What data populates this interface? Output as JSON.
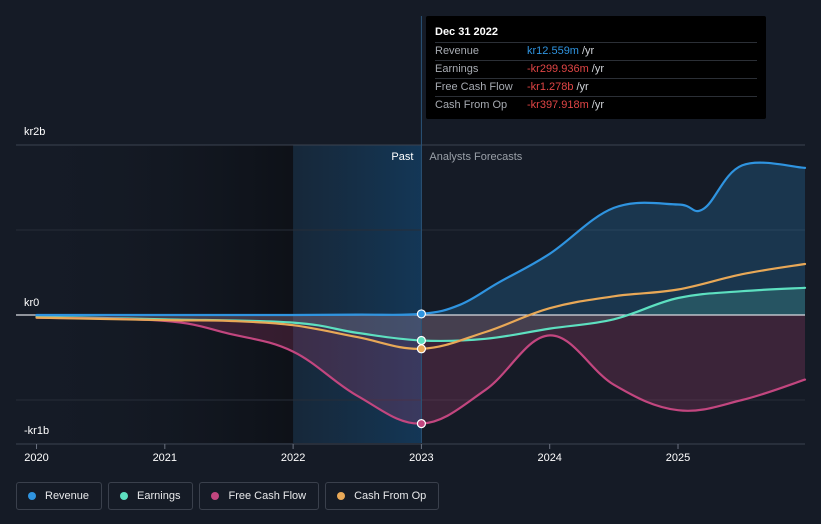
{
  "chart_data": {
    "type": "line",
    "ylabels": [
      {
        "text": "kr2b",
        "value": 2000
      },
      {
        "text": "kr0",
        "value": 0
      },
      {
        "text": "-kr1b",
        "value": -1000
      }
    ],
    "ylim": [
      -1500,
      2000
    ],
    "xlim": [
      2019.84,
      2025.99
    ],
    "x_ticks": [
      {
        "text": "2020",
        "value": 2020
      },
      {
        "text": "2021",
        "value": 2021
      },
      {
        "text": "2022",
        "value": 2022
      },
      {
        "text": "2023",
        "value": 2023
      },
      {
        "text": "2024",
        "value": 2024
      },
      {
        "text": "2025",
        "value": 2025
      }
    ],
    "divider_x": 2023,
    "highlight_start": 2022,
    "past_label": "Past",
    "forecast_label": "Analysts Forecasts",
    "series": [
      {
        "name": "Revenue",
        "key": "revenue",
        "color": "#2f94e0",
        "fill": true,
        "marker_x": 2023,
        "points": [
          [
            2020,
            0
          ],
          [
            2021,
            0
          ],
          [
            2022,
            0
          ],
          [
            2022.5,
            5
          ],
          [
            2023,
            12.6
          ],
          [
            2023.3,
            120
          ],
          [
            2023.6,
            380
          ],
          [
            2024,
            720
          ],
          [
            2024.5,
            1260
          ],
          [
            2025,
            1300
          ],
          [
            2025.2,
            1250
          ],
          [
            2025.5,
            1760
          ],
          [
            2025.99,
            1730
          ]
        ]
      },
      {
        "name": "Earnings",
        "key": "earnings",
        "color": "#5de0c0",
        "fill": true,
        "marker_x": 2023,
        "points": [
          [
            2020,
            -20
          ],
          [
            2021,
            -50
          ],
          [
            2022,
            -90
          ],
          [
            2022.5,
            -210
          ],
          [
            2023,
            -300
          ],
          [
            2023.5,
            -280
          ],
          [
            2024,
            -160
          ],
          [
            2024.5,
            -50
          ],
          [
            2025,
            200
          ],
          [
            2025.5,
            280
          ],
          [
            2025.99,
            320
          ]
        ]
      },
      {
        "name": "Free Cash Flow",
        "key": "fcf",
        "color": "#c2467f",
        "fill": true,
        "marker_x": 2023,
        "points": [
          [
            2020,
            -30
          ],
          [
            2021,
            -70
          ],
          [
            2021.5,
            -220
          ],
          [
            2022,
            -430
          ],
          [
            2022.5,
            -950
          ],
          [
            2023,
            -1278
          ],
          [
            2023.5,
            -880
          ],
          [
            2024,
            -240
          ],
          [
            2024.5,
            -820
          ],
          [
            2025,
            -1120
          ],
          [
            2025.5,
            -1000
          ],
          [
            2025.99,
            -760
          ]
        ]
      },
      {
        "name": "Cash From Op",
        "key": "cfo",
        "color": "#e8a857",
        "fill": false,
        "marker_x": 2023,
        "points": [
          [
            2020,
            -30
          ],
          [
            2021,
            -60
          ],
          [
            2021.5,
            -70
          ],
          [
            2022,
            -120
          ],
          [
            2022.5,
            -260
          ],
          [
            2023,
            -398
          ],
          [
            2023.5,
            -200
          ],
          [
            2024,
            80
          ],
          [
            2024.5,
            220
          ],
          [
            2025,
            300
          ],
          [
            2025.5,
            480
          ],
          [
            2025.99,
            600
          ]
        ]
      }
    ]
  },
  "tooltip": {
    "date": "Dec 31 2022",
    "rows": [
      {
        "label": "Revenue",
        "value": "kr12.559m",
        "unit": "/yr",
        "color": "#2f94e0"
      },
      {
        "label": "Earnings",
        "value": "-kr299.936m",
        "unit": "/yr",
        "color": "#e04545"
      },
      {
        "label": "Free Cash Flow",
        "value": "-kr1.278b",
        "unit": "/yr",
        "color": "#e04545"
      },
      {
        "label": "Cash From Op",
        "value": "-kr397.918m",
        "unit": "/yr",
        "color": "#e04545"
      }
    ]
  },
  "legend": [
    {
      "label": "Revenue",
      "color": "#2f94e0"
    },
    {
      "label": "Earnings",
      "color": "#5de0c0"
    },
    {
      "label": "Free Cash Flow",
      "color": "#c2467f"
    },
    {
      "label": "Cash From Op",
      "color": "#e8a857"
    }
  ]
}
